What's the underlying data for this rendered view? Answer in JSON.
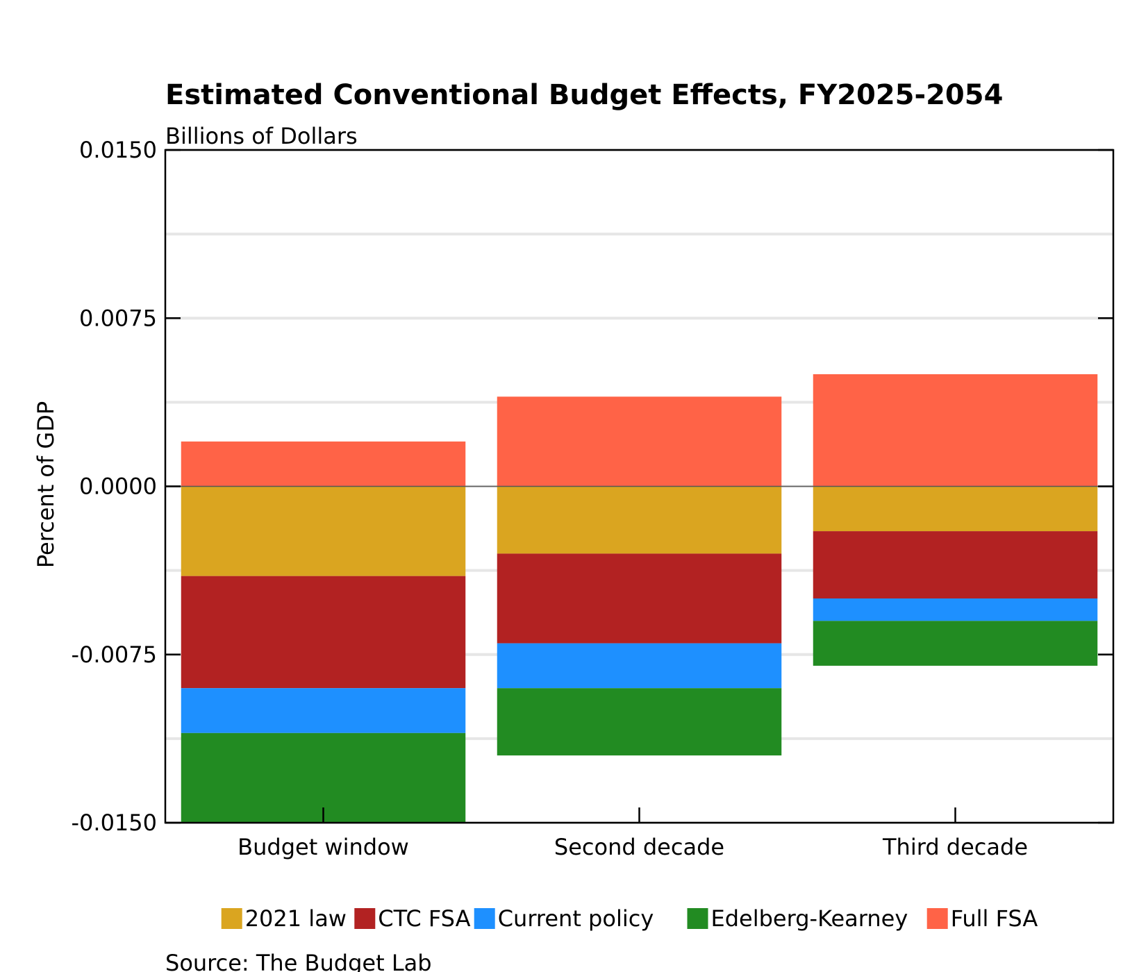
{
  "chart_data": {
    "type": "bar",
    "stacked": true,
    "title": "Estimated Conventional Budget Effects, FY2025-2054",
    "subtitle": "Billions of Dollars",
    "xlabel": "",
    "ylabel": "Percent of GDP",
    "categories": [
      "Budget window",
      "Second decade",
      "Third decade"
    ],
    "ylim": [
      -0.015,
      0.015
    ],
    "yticks": [
      -0.015,
      -0.0075,
      0,
      0.0075,
      0.015
    ],
    "ytick_labels": [
      "-0.0150",
      "-0.0075",
      "0.0000",
      "0.0075",
      "0.0150"
    ],
    "grid": true,
    "legend_position": "bottom",
    "series": [
      {
        "name": "2021 law",
        "color": "#DAA520",
        "values": [
          -0.004,
          -0.003,
          -0.002
        ]
      },
      {
        "name": "CTC FSA",
        "color": "#B22222",
        "values": [
          -0.005,
          -0.004,
          -0.003
        ]
      },
      {
        "name": "Current policy",
        "color": "#1E90FF",
        "values": [
          -0.002,
          -0.002,
          -0.001
        ]
      },
      {
        "name": "Edelberg-Kearney",
        "color": "#228B22",
        "values": [
          -0.004,
          -0.003,
          -0.002
        ]
      },
      {
        "name": "Full FSA",
        "color": "#FF6347",
        "values": [
          0.002,
          0.004,
          0.005
        ]
      }
    ],
    "source": "Source: The Budget Lab"
  }
}
